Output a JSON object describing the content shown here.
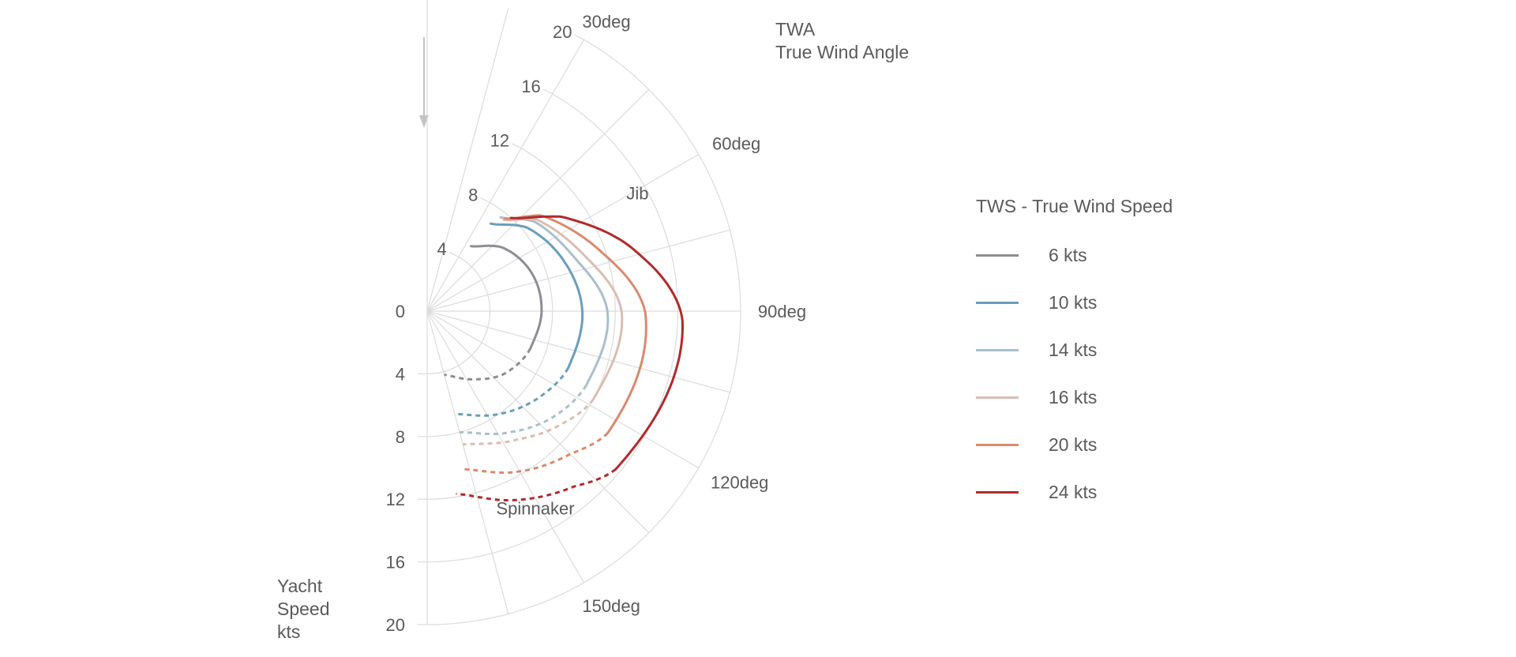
{
  "chart_data": {
    "type": "polar-line",
    "twa_title": [
      "TWA",
      "True Wind Angle"
    ],
    "speed_title": [
      "Yacht",
      "Speed",
      "kts"
    ],
    "radial_range": [
      0,
      20
    ],
    "radial_ticks": [
      "0",
      "4",
      "8",
      "12",
      "16",
      "20"
    ],
    "angle_tick_labels": [
      {
        "angle": 30,
        "label": "30deg"
      },
      {
        "angle": 60,
        "label": "60deg"
      },
      {
        "angle": 90,
        "label": "90deg"
      },
      {
        "angle": 120,
        "label": "120deg"
      },
      {
        "angle": 150,
        "label": "150deg"
      }
    ],
    "annotations": [
      {
        "text": "Jib",
        "angle": 62,
        "radius": 15.2
      },
      {
        "text": "Spinnaker",
        "angle": 152,
        "radius": 14.7
      }
    ],
    "legend_title": "TWS - True Wind Speed",
    "series": [
      {
        "name": "6 kts",
        "color": "#8d8d94",
        "jib": {
          "angles": [
            34,
            50,
            70,
            90,
            110
          ],
          "speeds": [
            5.0,
            6.3,
            7.1,
            7.3,
            7.0
          ]
        },
        "spinnaker": {
          "angles": [
            110,
            130,
            145,
            165
          ],
          "speeds": [
            7.0,
            6.3,
            5.3,
            4.2
          ]
        }
      },
      {
        "name": "10 kts",
        "color": "#6a9ebd",
        "jib": {
          "angles": [
            36,
            50,
            70,
            90,
            112
          ],
          "speeds": [
            6.9,
            8.3,
            9.3,
            9.9,
            9.7
          ]
        },
        "spinnaker": {
          "angles": [
            112,
            130,
            145,
            165
          ],
          "speeds": [
            9.7,
            8.9,
            8.0,
            6.8
          ]
        }
      },
      {
        "name": "14 kts",
        "color": "#a9bfcd",
        "jib": {
          "angles": [
            38,
            50,
            70,
            90,
            115
          ],
          "speeds": [
            7.6,
            8.9,
            10.0,
            11.5,
            11.2
          ]
        },
        "spinnaker": {
          "angles": [
            115,
            130,
            145,
            165
          ],
          "speeds": [
            11.2,
            10.5,
            9.4,
            8.0
          ]
        }
      },
      {
        "name": "16 kts",
        "color": "#dbbdb2",
        "jib": {
          "angles": [
            40,
            50,
            70,
            90,
            118
          ],
          "speeds": [
            7.6,
            9.1,
            10.6,
            12.4,
            12.0
          ]
        },
        "spinnaker": {
          "angles": [
            118,
            130,
            145,
            165
          ],
          "speeds": [
            12.0,
            11.2,
            10.0,
            8.8
          ]
        }
      },
      {
        "name": "20 kts",
        "color": "#d98a6e",
        "jib": {
          "angles": [
            40,
            50,
            70,
            90,
            124
          ],
          "speeds": [
            7.7,
            9.5,
            11.6,
            13.9,
            13.9
          ]
        },
        "spinnaker": {
          "angles": [
            124,
            135,
            150,
            168
          ],
          "speeds": [
            13.9,
            12.9,
            11.8,
            10.3
          ]
        }
      },
      {
        "name": "24 kts",
        "color": "#b12a2a",
        "jib": {
          "angles": [
            42,
            55,
            75,
            92,
            130
          ],
          "speeds": [
            8.0,
            10.5,
            14.0,
            16.3,
            15.7
          ]
        },
        "spinnaker": {
          "angles": [
            130,
            140,
            155,
            171
          ],
          "speeds": [
            15.7,
            14.6,
            13.3,
            11.8
          ]
        }
      }
    ]
  }
}
